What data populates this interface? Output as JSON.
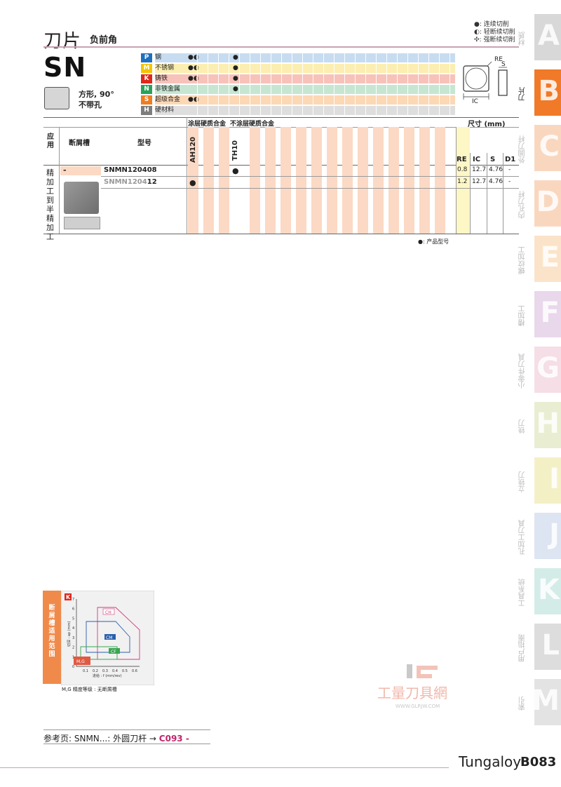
{
  "header": {
    "title": "刀片",
    "subtitle": "负前角"
  },
  "legend": [
    {
      "symbol": "●",
      "text": ": 连续切削"
    },
    {
      "symbol": "◐",
      "text": ": 轻断续切削"
    },
    {
      "symbol": "✣",
      "text": ": 强断续切削"
    }
  ],
  "insert": {
    "code": "SN",
    "shape_line1": "方形, 90°",
    "shape_line2": "不带孔"
  },
  "materials": [
    {
      "letter": "P",
      "name": "钢",
      "color": "#1f6fc0",
      "row_bg": "#c7dcf1",
      "ah120": "●◐",
      "th10": "●"
    },
    {
      "letter": "M",
      "name": "不锈钢",
      "color": "#f4c400",
      "row_bg": "#fbeeb0",
      "ah120": "●◐",
      "th10": "●"
    },
    {
      "letter": "K",
      "name": "铸铁",
      "color": "#e0271c",
      "row_bg": "#f7c2b9",
      "ah120": "●◐",
      "th10": "●"
    },
    {
      "letter": "N",
      "name": "非铁金属",
      "color": "#2aa25a",
      "row_bg": "#c6e6d1",
      "ah120": "",
      "th10": "●"
    },
    {
      "letter": "S",
      "name": "超级合金",
      "color": "#ef7d21",
      "row_bg": "#fcd8b5",
      "ah120": "●◐",
      "th10": ""
    },
    {
      "letter": "H",
      "name": "硬材料",
      "color": "#7d7d7d",
      "row_bg": "#dedede",
      "ah120": "",
      "th10": ""
    }
  ],
  "diagram": {
    "re": "RE",
    "s": "S",
    "ic": "IC"
  },
  "table": {
    "use_header": "应用",
    "chipbreaker_header": "断屑槽",
    "model_header": "型号",
    "coated_header": "涂层硬质合金",
    "uncoated_header": "不涂层硬质合金",
    "grade1": "AH120",
    "grade2": "TH10",
    "dim_header": "尺寸 (mm)",
    "dims": [
      "RE",
      "IC",
      "S",
      "D1"
    ],
    "use_label": "精加工到半精加工",
    "chipbreaker_value": "-",
    "rows": [
      {
        "model_prefix": "SNMN120408",
        "model_suffix": "",
        "ah120": "",
        "th10": "●",
        "re": "0.8",
        "ic": "12.7",
        "s": "4.76",
        "d1": "-"
      },
      {
        "model_prefix": "SNMN1204",
        "model_suffix": "12",
        "ah120": "●",
        "th10": "",
        "re": "1.2",
        "ic": "12.7",
        "s": "4.76",
        "d1": "-"
      }
    ],
    "note": "●: 产品型号"
  },
  "chip_chart": {
    "side_label": "断屑槽适用范围",
    "material_letter": "K",
    "ylabel": "切深 : ap (mm)",
    "xlabel": "进给 : f (mm/rev)",
    "yticks": [
      "0",
      "1",
      "2",
      "3",
      "4",
      "5",
      "6",
      "7"
    ],
    "xticks": [
      "0.1",
      "0.2",
      "0.3",
      "0.4",
      "0.5",
      "0.6"
    ],
    "zones": [
      "CH",
      "CM",
      "CF",
      "M,G"
    ],
    "note": "M,G 精度等级 : 无断屑槽"
  },
  "side_tabs": [
    {
      "letter": "A",
      "label": "材质",
      "color": "#d8d8d8"
    },
    {
      "letter": "B",
      "label": "刀片",
      "color": "#f07a28"
    },
    {
      "letter": "C",
      "label": "外圆刀杆",
      "color": "#f9d7bf"
    },
    {
      "letter": "D",
      "label": "内孔刀杆",
      "color": "#f9d7bf"
    },
    {
      "letter": "E",
      "label": "螺纹加工",
      "color": "#fbe3c9"
    },
    {
      "letter": "F",
      "label": "槽加工",
      "color": "#e9d7eb"
    },
    {
      "letter": "G",
      "label": "小零件刀具",
      "color": "#f5dee6"
    },
    {
      "letter": "H",
      "label": "铣刀",
      "color": "#e9eed2"
    },
    {
      "letter": "I",
      "label": "立铣刀",
      "color": "#f4f0c6"
    },
    {
      "letter": "J",
      "label": "孔加工刀具",
      "color": "#dde4f2"
    },
    {
      "letter": "K",
      "label": "工具系统",
      "color": "#d4ece8"
    },
    {
      "letter": "L",
      "label": "用户指南",
      "color": "#dddddd"
    },
    {
      "letter": "M",
      "label": "索引",
      "color": "#e3e3e3"
    }
  ],
  "footer": {
    "ref_prefix": "参考页:  SNMN...: 外圆刀杆 →",
    "ref_page": "C093 -",
    "brand": "Tungaloy",
    "page": "B083"
  },
  "watermark": {
    "text": "工量刀具網",
    "url": "WWW.GLRJW.COM"
  }
}
